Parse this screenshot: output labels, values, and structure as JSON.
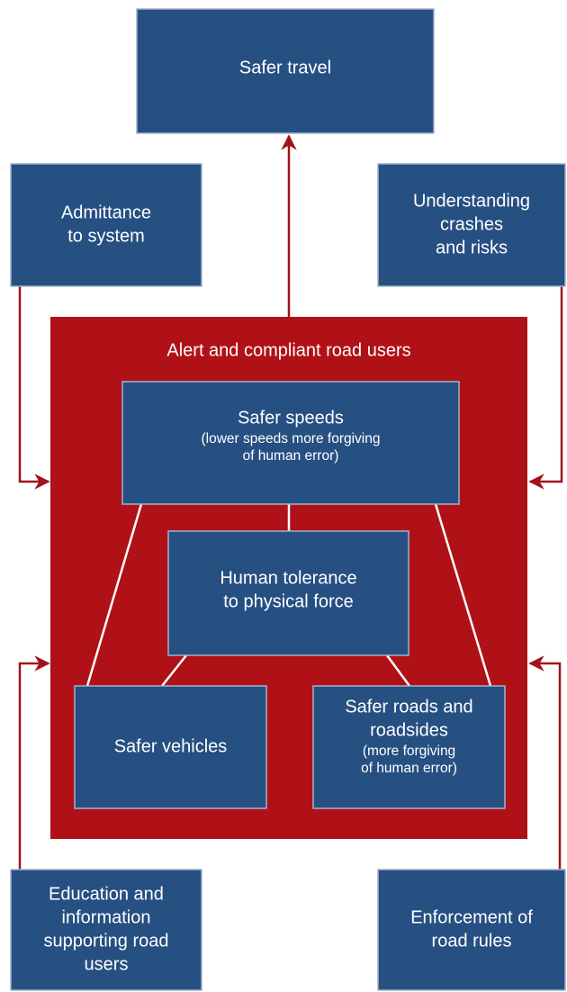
{
  "nodes": [
    {
      "lines": [
        "Safer travel"
      ]
    },
    {
      "lines": [
        "Admittance",
        "to system"
      ]
    },
    {
      "lines": [
        "Understanding",
        "crashes",
        "and risks"
      ]
    },
    {
      "lines": [
        "Alert and compliant road users"
      ]
    },
    {
      "lines": [
        "Safer speeds"
      ],
      "sub_lines": [
        "(lower speeds more forgiving",
        "of human error)"
      ]
    },
    {
      "lines": [
        "Human tolerance",
        "to physical force"
      ]
    },
    {
      "lines": [
        "Safer vehicles"
      ]
    },
    {
      "lines": [
        "Safer roads and",
        "roadsides"
      ],
      "sub_lines": [
        "(more forgiving",
        "of human error)"
      ]
    },
    {
      "lines": [
        "Education and",
        "information",
        "supporting road",
        "users"
      ]
    },
    {
      "lines": [
        "Enforcement of",
        "road rules"
      ]
    }
  ]
}
